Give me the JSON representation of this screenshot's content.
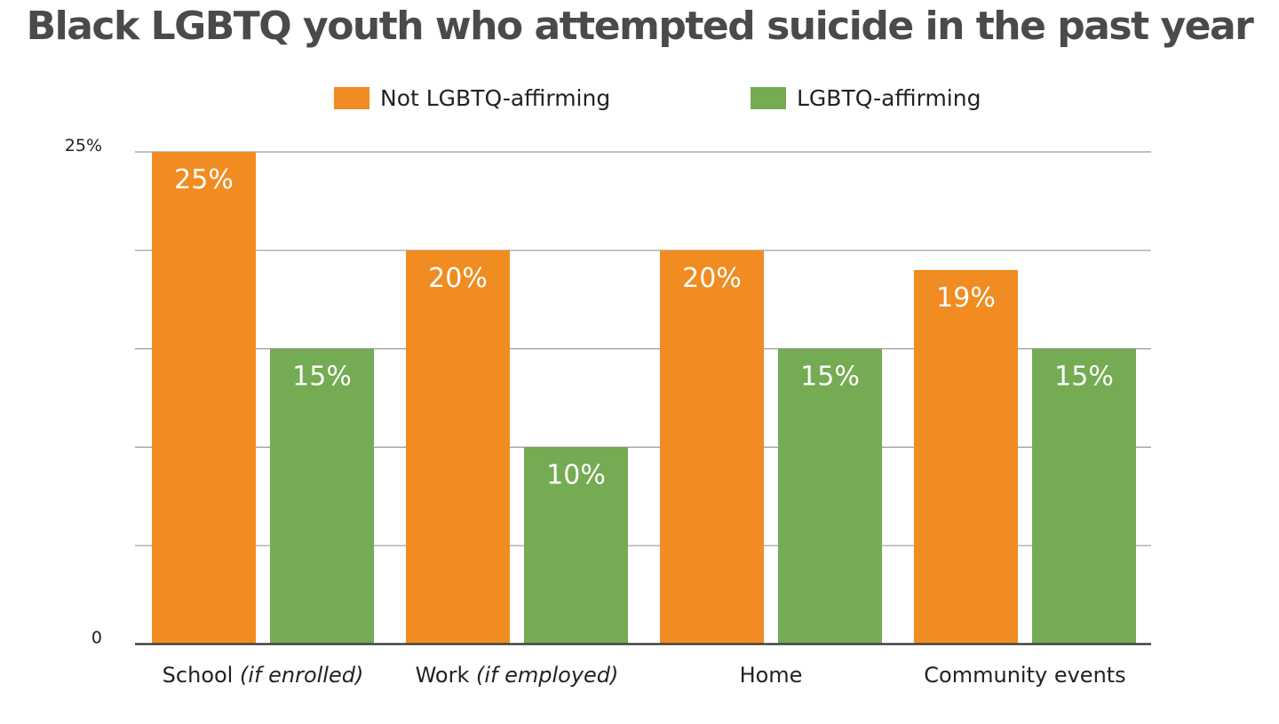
{
  "chart_data": {
    "type": "bar",
    "title": "Black LGBTQ youth who attempted suicide in the past year",
    "categories": [
      {
        "label": "School",
        "qualifier": "(if enrolled)"
      },
      {
        "label": "Work",
        "qualifier": "(if employed)"
      },
      {
        "label": "Home",
        "qualifier": ""
      },
      {
        "label": "Community events",
        "qualifier": ""
      }
    ],
    "series": [
      {
        "name": "Not LGBTQ-affirming",
        "color": "#f08c21",
        "values": [
          25,
          20,
          20,
          19
        ],
        "value_labels": [
          "25%",
          "20%",
          "20%",
          "19%"
        ]
      },
      {
        "name": "LGBTQ-affirming",
        "color": "#74ab53",
        "values": [
          15,
          10,
          15,
          15
        ],
        "value_labels": [
          "15%",
          "10%",
          "15%",
          "15%"
        ]
      }
    ],
    "ylim": [
      0,
      25
    ],
    "y_tick_labels": [
      {
        "value": 25,
        "label": "25%"
      },
      {
        "value": 0,
        "label": "0"
      }
    ],
    "gridline_values": [
      5,
      10,
      15,
      20,
      25
    ],
    "xlabel": "",
    "ylabel": "",
    "grid": true,
    "legend_position": "top-center"
  }
}
